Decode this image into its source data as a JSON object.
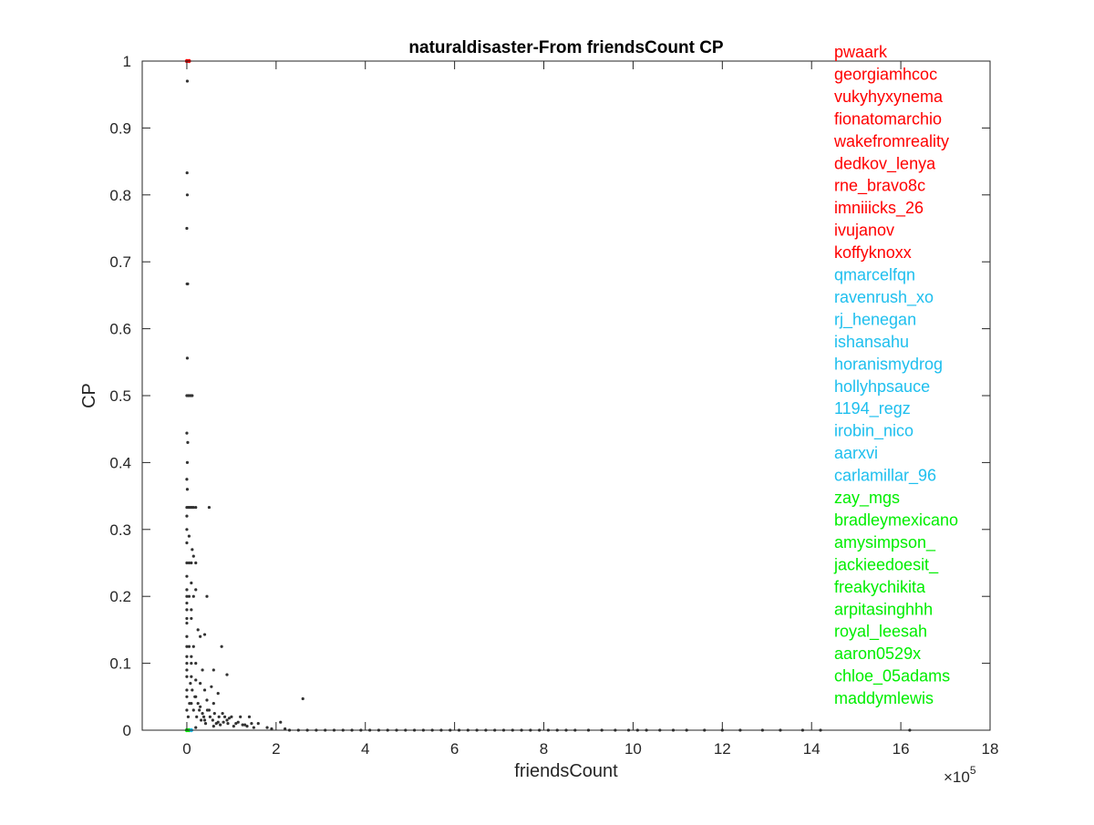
{
  "chart_data": {
    "type": "scatter",
    "title": "naturaldisaster-From friendsCount CP",
    "xlabel": "friendsCount",
    "ylabel": "CP",
    "x_exponent_label": "×10",
    "x_exponent_power": "5",
    "xlim": [
      -1,
      18
    ],
    "ylim": [
      0,
      1
    ],
    "x_ticks": [
      0,
      2,
      4,
      6,
      8,
      10,
      12,
      14,
      16,
      18
    ],
    "y_ticks": [
      0,
      0.1,
      0.2,
      0.3,
      0.4,
      0.5,
      0.6,
      0.7,
      0.8,
      0.9,
      1
    ],
    "x_tick_labels": [
      "0",
      "2",
      "4",
      "6",
      "8",
      "10",
      "12",
      "14",
      "16",
      "18"
    ],
    "y_tick_labels": [
      "0",
      "0.1",
      "0.2",
      "0.3",
      "0.4",
      "0.5",
      "0.6",
      "0.7",
      "0.8",
      "0.9",
      "1"
    ],
    "x_scale_note": "x values in units of 10^5",
    "grid": false,
    "colors": {
      "points": "#333333",
      "top_group": "#ff0000",
      "middle_group": "#1ebfee",
      "bottom_group": "#00ee00",
      "axis": "#262626"
    },
    "series": [
      {
        "values": [
          [
            0.01,
            0.97
          ],
          [
            0.005,
            0.833
          ],
          [
            0.01,
            0.8
          ],
          [
            0.0,
            0.75
          ],
          [
            0.005,
            0.667
          ],
          [
            0.02,
            0.667
          ],
          [
            0.01,
            0.556
          ],
          [
            0.0,
            0.5
          ],
          [
            0.03,
            0.5
          ],
          [
            0.06,
            0.5
          ],
          [
            0.09,
            0.5
          ],
          [
            0.12,
            0.5
          ],
          [
            0.0,
            0.444
          ],
          [
            0.02,
            0.43
          ],
          [
            0.01,
            0.4
          ],
          [
            0.0,
            0.375
          ],
          [
            0.01,
            0.36
          ],
          [
            0.0,
            0.333
          ],
          [
            0.03,
            0.333
          ],
          [
            0.06,
            0.333
          ],
          [
            0.09,
            0.333
          ],
          [
            0.12,
            0.333
          ],
          [
            0.15,
            0.333
          ],
          [
            0.2,
            0.333
          ],
          [
            0.5,
            0.333
          ],
          [
            0.0,
            0.3
          ],
          [
            0.05,
            0.29
          ],
          [
            0.12,
            0.27
          ],
          [
            0.15,
            0.26
          ],
          [
            0.0,
            0.25
          ],
          [
            0.05,
            0.25
          ],
          [
            0.1,
            0.25
          ],
          [
            0.2,
            0.25
          ],
          [
            0.0,
            0.23
          ],
          [
            0.1,
            0.22
          ],
          [
            0.2,
            0.21
          ],
          [
            0.0,
            0.2
          ],
          [
            0.05,
            0.2
          ],
          [
            0.15,
            0.2
          ],
          [
            0.45,
            0.2
          ],
          [
            0.0,
            0.18
          ],
          [
            0.1,
            0.18
          ],
          [
            0.0,
            0.167
          ],
          [
            0.1,
            0.167
          ],
          [
            0.25,
            0.15
          ],
          [
            0.4,
            0.143
          ],
          [
            0.3,
            0.14
          ],
          [
            0.0,
            0.125
          ],
          [
            0.05,
            0.125
          ],
          [
            0.15,
            0.125
          ],
          [
            0.78,
            0.125
          ],
          [
            0.0,
            0.11
          ],
          [
            0.1,
            0.11
          ],
          [
            0.0,
            0.1
          ],
          [
            0.1,
            0.1
          ],
          [
            0.2,
            0.1
          ],
          [
            0.35,
            0.09
          ],
          [
            0.6,
            0.09
          ],
          [
            0.9,
            0.083
          ],
          [
            0.0,
            0.08
          ],
          [
            0.1,
            0.08
          ],
          [
            0.2,
            0.075
          ],
          [
            0.3,
            0.07
          ],
          [
            0.55,
            0.065
          ],
          [
            0.4,
            0.06
          ],
          [
            0.7,
            0.055
          ],
          [
            0.0,
            0.05
          ],
          [
            0.2,
            0.05
          ],
          [
            0.45,
            0.045
          ],
          [
            0.6,
            0.04
          ],
          [
            2.6,
            0.047
          ],
          [
            0.3,
            0.035
          ],
          [
            0.5,
            0.03
          ],
          [
            0.8,
            0.025
          ],
          [
            1.0,
            0.02
          ],
          [
            1.2,
            0.02
          ],
          [
            1.4,
            0.02
          ],
          [
            0.9,
            0.015
          ],
          [
            0.4,
            0.015
          ],
          [
            0.7,
            0.012
          ],
          [
            1.1,
            0.01
          ],
          [
            1.6,
            0.01
          ],
          [
            2.1,
            0.012
          ],
          [
            1.3,
            0.008
          ],
          [
            0.6,
            0.006
          ],
          [
            0.2,
            0.004
          ],
          [
            0.0,
            0.03
          ],
          [
            0.0,
            0.06
          ],
          [
            0.0,
            0.09
          ],
          [
            0.0,
            0.14
          ],
          [
            0.0,
            0.16
          ],
          [
            0.0,
            0.19
          ],
          [
            0.0,
            0.21
          ],
          [
            0.0,
            0.28
          ],
          [
            0.0,
            0.32
          ],
          [
            0.03,
            0.02
          ],
          [
            0.06,
            0.04
          ],
          [
            0.08,
            0.07
          ],
          [
            0.1,
            0.04
          ],
          [
            0.12,
            0.06
          ],
          [
            0.15,
            0.03
          ],
          [
            0.18,
            0.05
          ],
          [
            0.22,
            0.02
          ],
          [
            0.25,
            0.04
          ],
          [
            0.28,
            0.03
          ],
          [
            0.32,
            0.015
          ],
          [
            0.35,
            0.025
          ],
          [
            0.38,
            0.02
          ],
          [
            0.42,
            0.01
          ],
          [
            0.46,
            0.03
          ],
          [
            0.52,
            0.02
          ],
          [
            0.58,
            0.015
          ],
          [
            0.62,
            0.025
          ],
          [
            0.66,
            0.01
          ],
          [
            0.72,
            0.02
          ],
          [
            0.75,
            0.008
          ],
          [
            0.82,
            0.012
          ],
          [
            0.85,
            0.02
          ],
          [
            0.92,
            0.01
          ],
          [
            0.95,
            0.018
          ],
          [
            1.05,
            0.006
          ],
          [
            1.15,
            0.012
          ],
          [
            1.25,
            0.008
          ],
          [
            1.35,
            0.006
          ],
          [
            1.45,
            0.01
          ],
          [
            1.5,
            0.004
          ],
          [
            1.8,
            0.004
          ],
          [
            1.9,
            0.002
          ],
          [
            2.2,
            0.002
          ],
          [
            2.3,
            0
          ],
          [
            2.5,
            0
          ],
          [
            2.7,
            0
          ],
          [
            2.9,
            0
          ],
          [
            3.1,
            0
          ],
          [
            3.3,
            0
          ],
          [
            3.5,
            0
          ],
          [
            3.7,
            0
          ],
          [
            3.9,
            0
          ],
          [
            4.1,
            0
          ],
          [
            4.3,
            0
          ],
          [
            4.5,
            0
          ],
          [
            4.7,
            0
          ],
          [
            4.9,
            0
          ],
          [
            5.1,
            0
          ],
          [
            5.3,
            0
          ],
          [
            5.5,
            0
          ],
          [
            5.7,
            0
          ],
          [
            5.9,
            0
          ],
          [
            6.1,
            0
          ],
          [
            6.3,
            0
          ],
          [
            6.5,
            0
          ],
          [
            6.7,
            0
          ],
          [
            6.9,
            0
          ],
          [
            7.1,
            0
          ],
          [
            7.3,
            0
          ],
          [
            7.5,
            0
          ],
          [
            7.7,
            0
          ],
          [
            7.9,
            0
          ],
          [
            8.1,
            0
          ],
          [
            8.3,
            0
          ],
          [
            8.5,
            0
          ],
          [
            8.7,
            0
          ],
          [
            9.0,
            0
          ],
          [
            9.3,
            0
          ],
          [
            9.6,
            0
          ],
          [
            9.9,
            0
          ],
          [
            10.1,
            0
          ],
          [
            10.3,
            0
          ],
          [
            10.6,
            0
          ],
          [
            10.9,
            0
          ],
          [
            11.2,
            0
          ],
          [
            11.6,
            0
          ],
          [
            12.0,
            0
          ],
          [
            12.4,
            0
          ],
          [
            12.9,
            0
          ],
          [
            13.3,
            0
          ],
          [
            13.8,
            0
          ],
          [
            14.2,
            0
          ],
          [
            16.2,
            0
          ]
        ]
      }
    ],
    "highlight_points": [
      {
        "x": 0.0,
        "y": 1.0,
        "color": "#ff0000"
      },
      {
        "x": 0.05,
        "y": 1.0,
        "color": "#ff0000"
      },
      {
        "x": 0.0,
        "y": 0.0,
        "color": "#00ee00"
      },
      {
        "x": 0.05,
        "y": 0.0,
        "color": "#00ee00"
      },
      {
        "x": 0.1,
        "y": 0.0,
        "color": "#1ebfee"
      }
    ],
    "annotations": [
      {
        "text": "pwaark",
        "group": "top"
      },
      {
        "text": "georgiamhcoc",
        "group": "top"
      },
      {
        "text": "vukyhyxynema",
        "group": "top"
      },
      {
        "text": "fionatomarchio",
        "group": "top"
      },
      {
        "text": "wakefromreality",
        "group": "top"
      },
      {
        "text": "dedkov_lenya",
        "group": "top"
      },
      {
        "text": "rne_bravo8c",
        "group": "top"
      },
      {
        "text": "imniiicks_26",
        "group": "top"
      },
      {
        "text": "ivujanov",
        "group": "top"
      },
      {
        "text": "koffyknoxx",
        "group": "top"
      },
      {
        "text": "qmarcelfqn",
        "group": "middle"
      },
      {
        "text": "ravenrush_xo",
        "group": "middle"
      },
      {
        "text": "rj_henegan",
        "group": "middle"
      },
      {
        "text": "ishansahu",
        "group": "middle"
      },
      {
        "text": "horanismydrog",
        "group": "middle"
      },
      {
        "text": "hollyhpsauce",
        "group": "middle"
      },
      {
        "text": "1194_regz",
        "group": "middle"
      },
      {
        "text": "irobin_nico",
        "group": "middle"
      },
      {
        "text": "aarxvi",
        "group": "middle"
      },
      {
        "text": "carlamillar_96",
        "group": "middle"
      },
      {
        "text": "zay_mgs",
        "group": "bottom"
      },
      {
        "text": "bradleymexicano",
        "group": "bottom"
      },
      {
        "text": "amysimpson_",
        "group": "bottom"
      },
      {
        "text": "jackieedoesit_",
        "group": "bottom"
      },
      {
        "text": "freakychikita",
        "group": "bottom"
      },
      {
        "text": "arpitasinghhh",
        "group": "bottom"
      },
      {
        "text": "royal_leesah",
        "group": "bottom"
      },
      {
        "text": "aaron0529x",
        "group": "bottom"
      },
      {
        "text": "chloe_05adams",
        "group": "bottom"
      },
      {
        "text": "maddymlewis",
        "group": "bottom"
      }
    ]
  }
}
